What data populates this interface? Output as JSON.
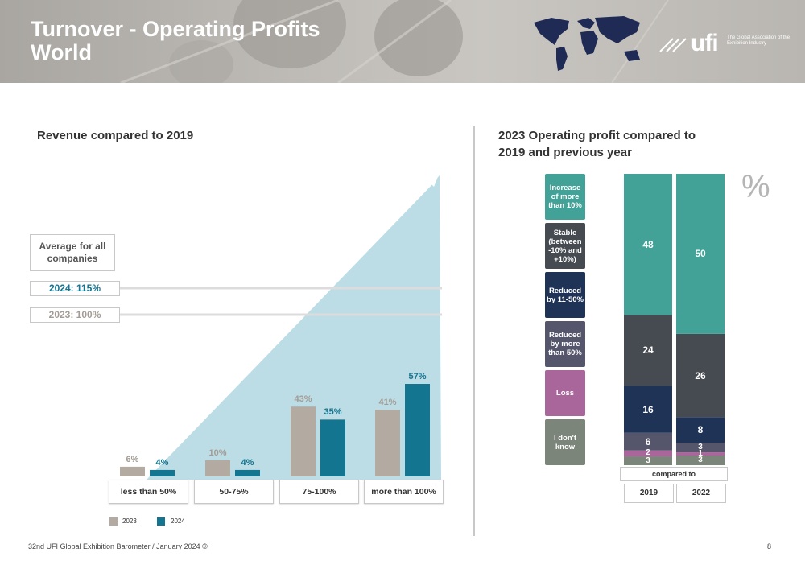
{
  "header": {
    "title_line1": "Turnover - Operating Profits",
    "title_line2": "World",
    "logo_word": "ufi",
    "logo_tagline": "The Global Association of the Exhibition Industry"
  },
  "colors": {
    "series_2023": "#b3aaa2",
    "series_2024": "#13758f",
    "triangle": "#bcdde6",
    "increase": "#43a297",
    "stable": "#464b52",
    "reduced_11_50": "#1f3357",
    "reduced_more_50": "#55566c",
    "loss": "#a9669a",
    "dont_know": "#7c857a"
  },
  "left_chart": {
    "heading": "Revenue compared to 2019",
    "average_label": "Average for all companies",
    "avg_2024": "2024: 115%",
    "avg_2023": "2023: 100%",
    "legend_2023": "2023",
    "legend_2024": "2024"
  },
  "right_chart": {
    "heading_line1": "2023 Operating profit compared to",
    "heading_line2": "2019 and previous year",
    "percent_symbol": "%",
    "compared_to": "compared to",
    "legend": [
      "Increase of more than 10%",
      "Stable (between -10% and +10%)",
      "Reduced by 11-50%",
      "Reduced by more than 50%",
      "Loss",
      "I don't know"
    ]
  },
  "chart_data": [
    {
      "type": "bar",
      "title": "Revenue compared to 2019",
      "categories": [
        "less than 50%",
        "50-75%",
        "75-100%",
        "more than 100%"
      ],
      "series": [
        {
          "name": "2023",
          "values": [
            6,
            10,
            43,
            41
          ],
          "labels": [
            "6%",
            "10%",
            "43%",
            "41%"
          ]
        },
        {
          "name": "2024",
          "values": [
            4,
            4,
            35,
            57
          ],
          "labels": [
            "4%",
            "4%",
            "35%",
            "57%"
          ]
        }
      ],
      "ylim": [
        0,
        57
      ],
      "legend_position": "bottom-left"
    },
    {
      "type": "bar",
      "stacked": true,
      "title": "2023 Operating profit compared to 2019 and previous year",
      "categories": [
        "2019",
        "2022"
      ],
      "series": [
        {
          "name": "I don't know",
          "values": [
            3,
            3
          ]
        },
        {
          "name": "Loss",
          "values": [
            2,
            1
          ]
        },
        {
          "name": "Reduced by more than 50%",
          "values": [
            6,
            3
          ]
        },
        {
          "name": "Reduced by 11-50%",
          "values": [
            16,
            8
          ]
        },
        {
          "name": "Stable (between -10% and +10%)",
          "values": [
            24,
            26
          ]
        },
        {
          "name": "Increase of more than 10%",
          "values": [
            48,
            50
          ]
        }
      ],
      "ylim": [
        0,
        100
      ]
    }
  ],
  "footer": {
    "source": "32nd UFI Global Exhibition Barometer / January 2024 ©",
    "page": "8"
  }
}
